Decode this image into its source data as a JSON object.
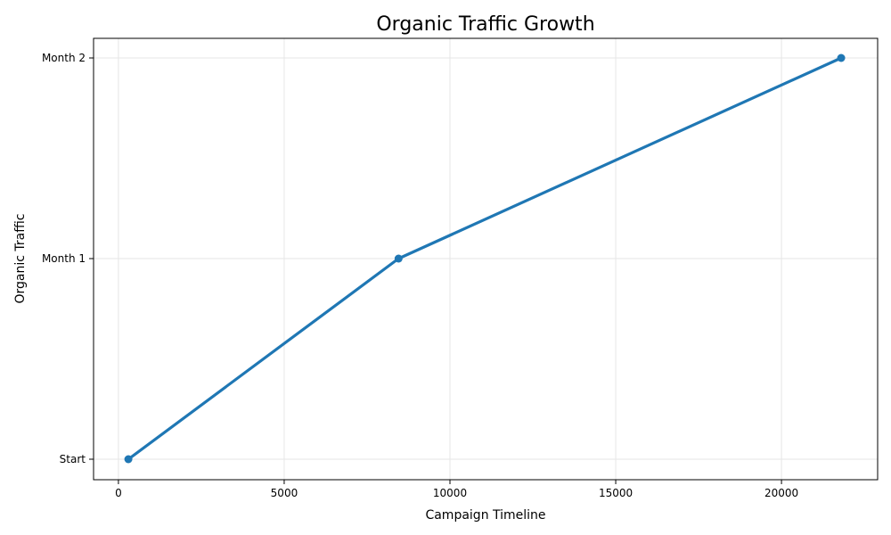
{
  "chart_data": {
    "type": "line",
    "title": "Organic Traffic Growth",
    "xlabel": "Campaign Timeline",
    "ylabel": "Organic Traffic",
    "xlim": [
      -750,
      22900
    ],
    "x_ticks": [
      0,
      5000,
      10000,
      15000,
      20000
    ],
    "x_tick_labels": [
      "0",
      "5000",
      "10000",
      "15000",
      "20000"
    ],
    "y_categories": [
      "Start",
      "Month 1",
      "Month 2"
    ],
    "grid": true,
    "series": [
      {
        "color": "#1f77b4",
        "points": [
          {
            "x": 300,
            "y": "Start"
          },
          {
            "x": 8450,
            "y": "Month 1"
          },
          {
            "x": 21800,
            "y": "Month 2"
          }
        ]
      }
    ]
  }
}
